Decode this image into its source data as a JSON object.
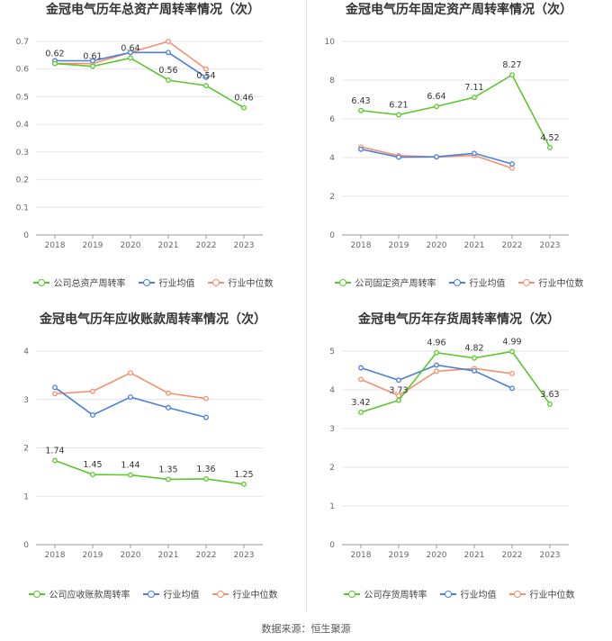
{
  "source_label": "数据来源：恒生聚源",
  "chart_data": [
    {
      "type": "line",
      "title": "金冠电气历年总资产周转率情况（次）",
      "categories": [
        "2018",
        "2019",
        "2020",
        "2021",
        "2022",
        "2023"
      ],
      "ylim": [
        0,
        0.7
      ],
      "yticks": [
        "0",
        "0.1",
        "0.2",
        "0.3",
        "0.4",
        "0.5",
        "0.6",
        "0.7"
      ],
      "yticks_values": [
        0,
        0.1,
        0.2,
        0.3,
        0.4,
        0.5,
        0.6,
        0.7
      ],
      "grid": true,
      "legend_position": "bottom",
      "series": [
        {
          "name": "公司总资产周转率",
          "color": "#5cc72c",
          "values": [
            0.62,
            0.61,
            0.64,
            0.56,
            0.54,
            0.46
          ],
          "labels": [
            "0.62",
            "0.61",
            "0.64",
            "0.56",
            "0.54",
            "0.46"
          ]
        },
        {
          "name": "行业均值",
          "color": "#4a7fdc",
          "values": [
            0.63,
            0.63,
            0.66,
            0.66,
            0.57,
            null
          ]
        },
        {
          "name": "行业中位数",
          "color": "#f5906e",
          "values": [
            0.62,
            0.62,
            0.66,
            0.7,
            0.6,
            null
          ]
        }
      ]
    },
    {
      "type": "line",
      "title": "金冠电气历年固定资产周转率情况（次）",
      "categories": [
        "2018",
        "2019",
        "2020",
        "2021",
        "2022",
        "2023"
      ],
      "ylim": [
        0,
        10
      ],
      "yticks": [
        "0",
        "2",
        "4",
        "6",
        "8",
        "10"
      ],
      "yticks_values": [
        0,
        2,
        4,
        6,
        8,
        10
      ],
      "grid": true,
      "legend_position": "bottom",
      "series": [
        {
          "name": "公司固定资产周转率",
          "color": "#5cc72c",
          "values": [
            6.43,
            6.21,
            6.64,
            7.11,
            8.27,
            4.52
          ],
          "labels": [
            "6.43",
            "6.21",
            "6.64",
            "7.11",
            "8.27",
            "4.52"
          ]
        },
        {
          "name": "行业均值",
          "color": "#4a7fdc",
          "values": [
            4.43,
            4.02,
            4.04,
            4.22,
            3.67,
            null
          ]
        },
        {
          "name": "行业中位数",
          "color": "#f5906e",
          "values": [
            4.55,
            4.1,
            4.03,
            4.11,
            3.45,
            null
          ]
        }
      ]
    },
    {
      "type": "line",
      "title": "金冠电气历年应收账款周转率情况（次）",
      "categories": [
        "2018",
        "2019",
        "2020",
        "2021",
        "2022",
        "2023"
      ],
      "ylim": [
        0,
        4
      ],
      "yticks": [
        "0",
        "1",
        "2",
        "3",
        "4"
      ],
      "yticks_values": [
        0,
        1,
        2,
        3,
        4
      ],
      "grid": true,
      "legend_position": "bottom",
      "series": [
        {
          "name": "公司应收账款周转率",
          "color": "#5cc72c",
          "values": [
            1.74,
            1.45,
            1.44,
            1.35,
            1.36,
            1.25
          ],
          "labels": [
            "1.74",
            "1.45",
            "1.44",
            "1.35",
            "1.36",
            "1.25"
          ]
        },
        {
          "name": "行业均值",
          "color": "#4a7fdc",
          "values": [
            3.25,
            2.68,
            3.05,
            2.83,
            2.63,
            null
          ]
        },
        {
          "name": "行业中位数",
          "color": "#f5906e",
          "values": [
            3.12,
            3.17,
            3.55,
            3.13,
            3.02,
            null
          ]
        }
      ]
    },
    {
      "type": "line",
      "title": "金冠电气历年存货周转率情况（次）",
      "categories": [
        "2018",
        "2019",
        "2020",
        "2021",
        "2022",
        "2023"
      ],
      "ylim": [
        0,
        5
      ],
      "yticks": [
        "0",
        "1",
        "2",
        "3",
        "4",
        "5"
      ],
      "yticks_values": [
        0,
        1,
        2,
        3,
        4,
        5
      ],
      "grid": true,
      "legend_position": "bottom",
      "series": [
        {
          "name": "公司存货周转率",
          "color": "#5cc72c",
          "values": [
            3.42,
            3.73,
            4.96,
            4.82,
            4.99,
            3.63
          ],
          "labels": [
            "3.42",
            "3.73",
            "4.96",
            "4.82",
            "4.99",
            "3.63"
          ]
        },
        {
          "name": "行业均值",
          "color": "#4a7fdc",
          "values": [
            4.57,
            4.25,
            4.64,
            4.49,
            4.04,
            null
          ]
        },
        {
          "name": "行业中位数",
          "color": "#f5906e",
          "values": [
            4.27,
            3.85,
            4.48,
            4.55,
            4.42,
            null
          ]
        }
      ]
    }
  ]
}
